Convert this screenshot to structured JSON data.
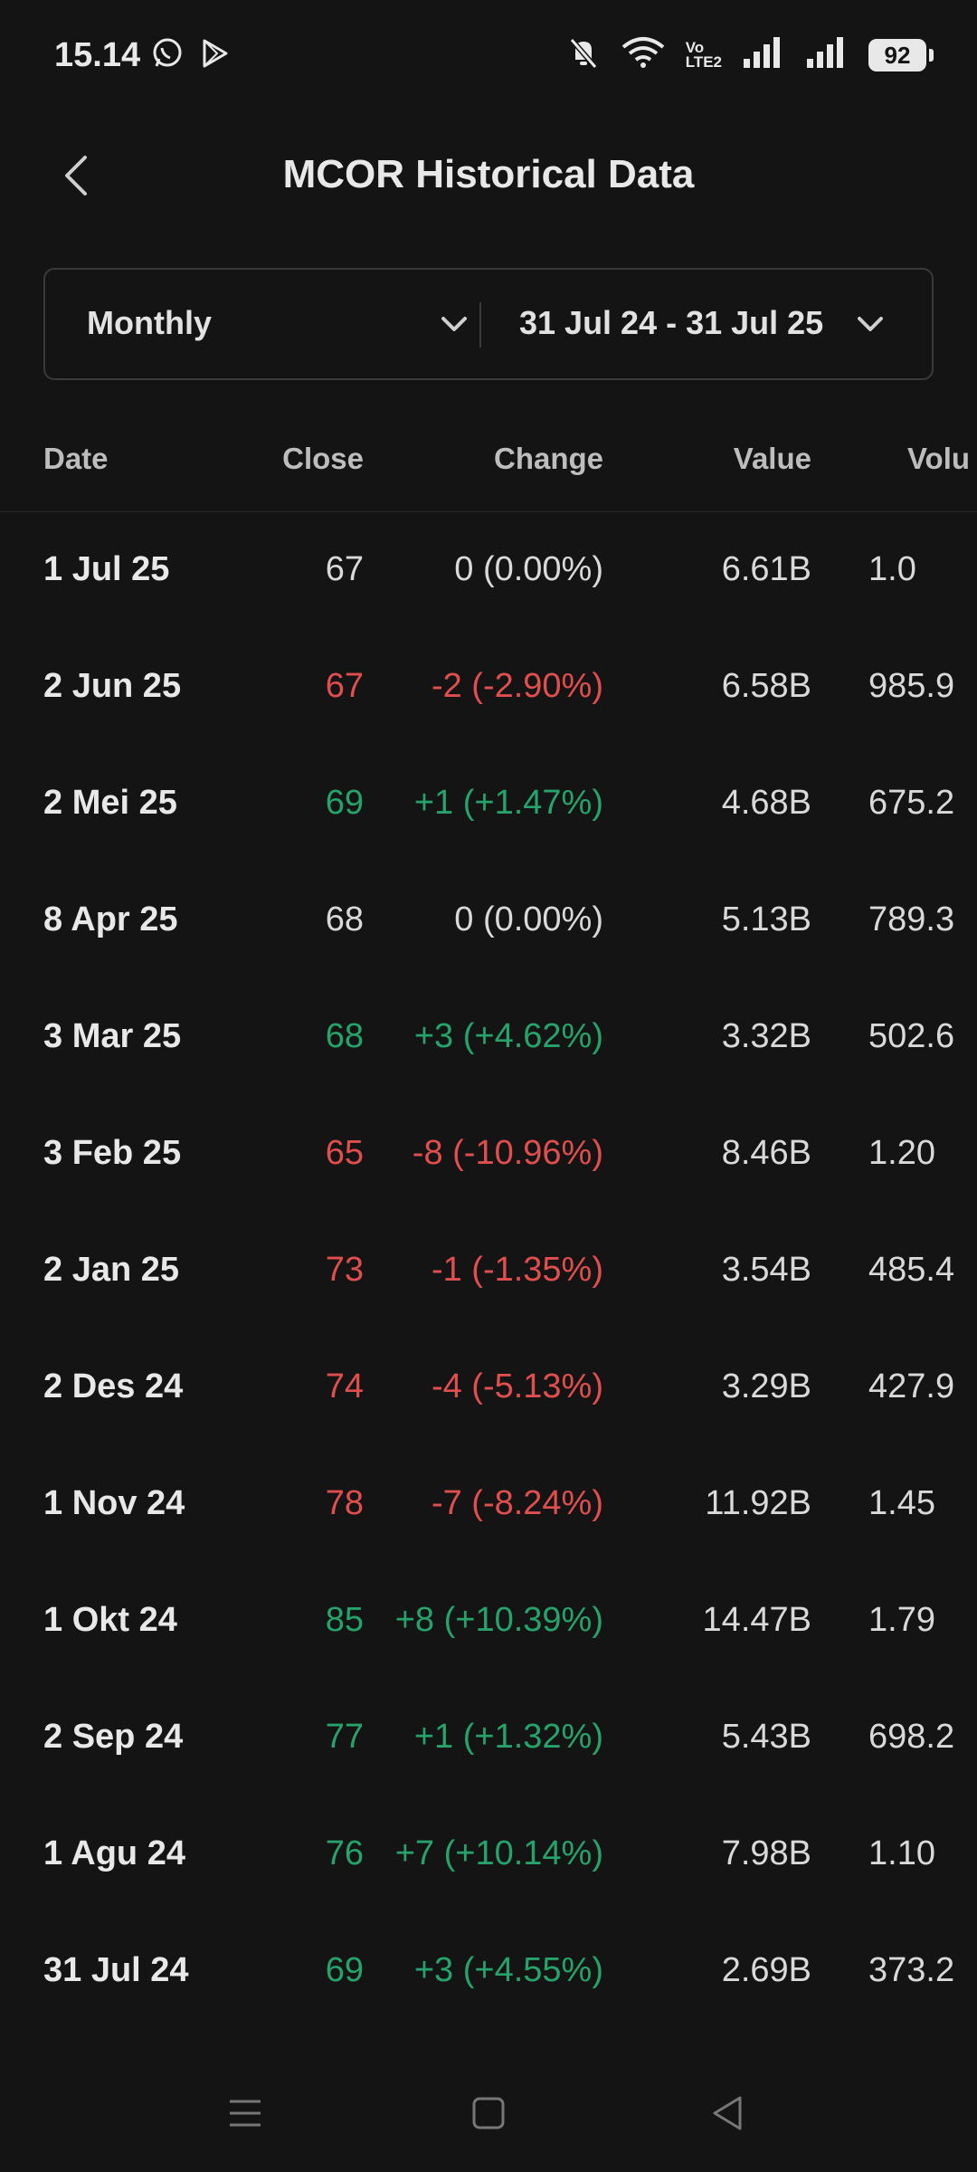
{
  "status_bar": {
    "time": "15.14",
    "volte_top": "Vo",
    "volte_bottom": "LTE2",
    "battery": "92"
  },
  "header": {
    "title": "MCOR Historical Data"
  },
  "filters": {
    "period": "Monthly",
    "range": "31 Jul 24 - 31 Jul 25"
  },
  "table": {
    "headers": {
      "date": "Date",
      "close": "Close",
      "change": "Change",
      "value": "Value",
      "volume": "Volu"
    },
    "rows": [
      {
        "date": "1 Jul 25",
        "close": "67",
        "change": "0 (0.00%)",
        "value": "6.61B",
        "volume": "1.0",
        "trend": "flat"
      },
      {
        "date": "2 Jun 25",
        "close": "67",
        "change": "-2 (-2.90%)",
        "value": "6.58B",
        "volume": "985.9",
        "trend": "down"
      },
      {
        "date": "2 Mei 25",
        "close": "69",
        "change": "+1 (+1.47%)",
        "value": "4.68B",
        "volume": "675.2",
        "trend": "up"
      },
      {
        "date": "8 Apr 25",
        "close": "68",
        "change": "0 (0.00%)",
        "value": "5.13B",
        "volume": "789.3",
        "trend": "flat"
      },
      {
        "date": "3 Mar 25",
        "close": "68",
        "change": "+3 (+4.62%)",
        "value": "3.32B",
        "volume": "502.6",
        "trend": "up"
      },
      {
        "date": "3 Feb 25",
        "close": "65",
        "change": "-8 (-10.96%)",
        "value": "8.46B",
        "volume": "1.20",
        "trend": "down"
      },
      {
        "date": "2 Jan 25",
        "close": "73",
        "change": "-1 (-1.35%)",
        "value": "3.54B",
        "volume": "485.4",
        "trend": "down"
      },
      {
        "date": "2 Des 24",
        "close": "74",
        "change": "-4 (-5.13%)",
        "value": "3.29B",
        "volume": "427.9",
        "trend": "down"
      },
      {
        "date": "1 Nov 24",
        "close": "78",
        "change": "-7 (-8.24%)",
        "value": "11.92B",
        "volume": "1.45",
        "trend": "down"
      },
      {
        "date": "1 Okt 24",
        "close": "85",
        "change": "+8 (+10.39%)",
        "value": "14.47B",
        "volume": "1.79",
        "trend": "up"
      },
      {
        "date": "2 Sep 24",
        "close": "77",
        "change": "+1 (+1.32%)",
        "value": "5.43B",
        "volume": "698.2",
        "trend": "up"
      },
      {
        "date": "1 Agu 24",
        "close": "76",
        "change": "+7 (+10.14%)",
        "value": "7.98B",
        "volume": "1.10",
        "trend": "up"
      },
      {
        "date": "31 Jul 24",
        "close": "69",
        "change": "+3 (+4.55%)",
        "value": "2.69B",
        "volume": "373.2",
        "trend": "up"
      }
    ]
  },
  "colors": {
    "up": "#26a36b",
    "down": "#e04e4e",
    "background": "#141414"
  }
}
